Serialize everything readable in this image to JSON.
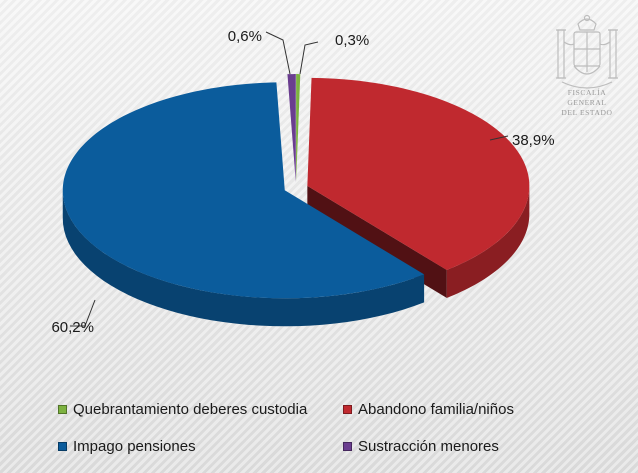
{
  "chart_data": {
    "type": "pie",
    "title": "",
    "style": "3d-exploded",
    "legend_position": "bottom",
    "series": [
      {
        "name": "Quebrantamiento deberes custodia",
        "value": 0.3,
        "label": "0,3%",
        "color": "#7db240"
      },
      {
        "name": "Abandono familia/niños",
        "value": 38.9,
        "label": "38,9%",
        "color": "#c0292f"
      },
      {
        "name": "Impago pensiones",
        "value": 60.2,
        "label": "60,2%",
        "color": "#0b5c9c"
      },
      {
        "name": "Sustracción menores",
        "value": 0.6,
        "label": "0,6%",
        "color": "#6a3d8f"
      }
    ]
  },
  "legend": {
    "items": [
      {
        "label": "Quebrantamiento deberes custodia",
        "color": "#7db240"
      },
      {
        "label": "Abandono familia/niños",
        "color": "#c0292f"
      },
      {
        "label": "Impago pensiones",
        "color": "#0b5c9c"
      },
      {
        "label": "Sustracción menores",
        "color": "#6a3d8f"
      }
    ]
  },
  "watermark": {
    "icon": "coat-of-arms-icon",
    "line1": "FISCALÍA GENERAL",
    "line2": "DEL ESTADO"
  }
}
